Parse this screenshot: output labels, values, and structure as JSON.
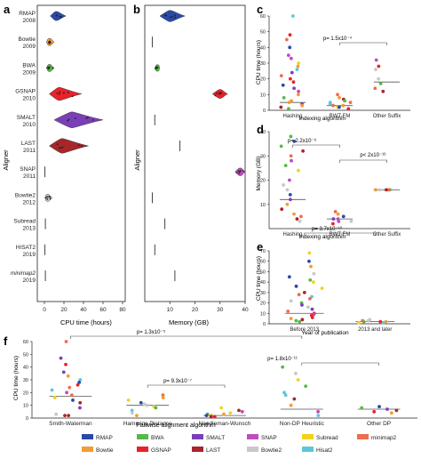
{
  "panels": [
    {
      "letter": "a",
      "xlabel": "CPU time (hours)",
      "ylabel": "Aligner",
      "xticks": [
        0,
        20,
        40,
        60,
        80
      ]
    },
    {
      "letter": "b",
      "xlabel": "Memory (GB)",
      "ylabel": "Aligner",
      "xticks": [
        10,
        20,
        30,
        40
      ]
    },
    {
      "letter": "c",
      "xlabel": "Indexing algorithm",
      "ylabel": "CPU time (hours)",
      "yticks": [
        0,
        10,
        20,
        30,
        40,
        50,
        60
      ],
      "categories": [
        "Hashing",
        "BWT-FM",
        "Other Suffix"
      ],
      "annotation": "p= 1.5x10⁻⁴"
    },
    {
      "letter": "d",
      "xlabel": "Indexing algorithm",
      "ylabel": "Memory (GB)",
      "yticks": [
        10,
        20,
        30,
        40
      ],
      "categories": [
        "Hashing",
        "BWT-FM",
        "Other Suffix"
      ],
      "annotations": [
        "p= 2.2x10⁻⁶",
        "p< 2x10⁻¹⁶"
      ]
    },
    {
      "letter": "e",
      "xlabel": "Year of publication",
      "ylabel": "CPU time (hours)",
      "yticks": [
        0,
        10,
        20,
        30,
        40,
        50,
        60,
        70
      ],
      "categories": [
        "Before 2013",
        "2013 and later"
      ],
      "annotation": "p= 3.7x10⁻¹⁰"
    },
    {
      "letter": "f",
      "xlabel": "Pairwise alignment algorithm",
      "ylabel": "CPU time (hours)",
      "yticks": [
        0,
        10,
        20,
        30,
        40,
        50,
        60
      ],
      "categories": [
        "Smith-Waterman",
        "Hamming Distance",
        "Needleman-Wunsch",
        "Non-DP Heuristic",
        "Other DP"
      ],
      "annotations": [
        "p= 1.3x10⁻⁵",
        "p= 9.3x10⁻⁷",
        "p= 1.8x10⁻¹¹"
      ]
    }
  ],
  "aligners": [
    {
      "name": "RMAP",
      "year": "2008"
    },
    {
      "name": "Bowtie",
      "year": "2009"
    },
    {
      "name": "BWA",
      "year": "2009"
    },
    {
      "name": "GSNAP",
      "year": "2010"
    },
    {
      "name": "SMALT",
      "year": "2010"
    },
    {
      "name": "LAST",
      "year": "2011"
    },
    {
      "name": "SNAP",
      "year": "2011"
    },
    {
      "name": "Bowtie2",
      "year": "2012"
    },
    {
      "name": "Subread",
      "year": "2013"
    },
    {
      "name": "HISAT2",
      "year": "2019"
    },
    {
      "name": "minimap2",
      "year": "2019"
    }
  ],
  "legend": [
    {
      "name": "RMAP",
      "color": "#2a4aa8"
    },
    {
      "name": "BWA",
      "color": "#58b947"
    },
    {
      "name": "SMALT",
      "color": "#7a3fb8"
    },
    {
      "name": "SNAP",
      "color": "#c04bc0"
    },
    {
      "name": "Subread",
      "color": "#f2d21a"
    },
    {
      "name": "minimap2",
      "color": "#ee6e4e"
    },
    {
      "name": "Bowtie",
      "color": "#f39c33"
    },
    {
      "name": "GSNAP",
      "color": "#e8222a"
    },
    {
      "name": "LAST",
      "color": "#a8262a"
    },
    {
      "name": "Bowtie2",
      "color": "#c8c8c8"
    },
    {
      "name": "Hisat2",
      "color": "#5bc8d8"
    }
  ],
  "chart_data": [
    {
      "panel": "a",
      "type": "violin",
      "xlim": [
        0,
        80
      ],
      "categories": [
        "RMAP",
        "Bowtie",
        "BWA",
        "GSNAP",
        "SMALT",
        "LAST",
        "SNAP",
        "Bowtie2",
        "Subread",
        "HISAT2",
        "minimap2"
      ],
      "medians": [
        12,
        5,
        5,
        15,
        28,
        18,
        0.5,
        3,
        1,
        0.5,
        1
      ],
      "min": [
        6,
        2,
        2,
        5,
        10,
        5,
        0.1,
        0.5,
        0.2,
        0.1,
        0.2
      ],
      "max": [
        22,
        10,
        10,
        38,
        60,
        45,
        1.5,
        8,
        2.5,
        1.5,
        2.5
      ]
    },
    {
      "panel": "b",
      "type": "violin",
      "xlim": [
        0,
        40
      ],
      "categories": [
        "RMAP",
        "Bowtie",
        "BWA",
        "GSNAP",
        "SMALT",
        "LAST",
        "SNAP",
        "Bowtie2",
        "Subread",
        "HISAT2",
        "minimap2"
      ],
      "medians": [
        10,
        3,
        5,
        30,
        4,
        14,
        38,
        3,
        8,
        4,
        12
      ],
      "min": [
        6,
        3,
        4,
        27,
        4,
        14,
        36,
        3,
        8,
        4,
        12
      ],
      "max": [
        16,
        3,
        6,
        33,
        4,
        14,
        40,
        3,
        8,
        4,
        12
      ]
    },
    {
      "panel": "c",
      "type": "scatter",
      "ylim": [
        0,
        60
      ],
      "categories": [
        "Hashing",
        "BWT-FM",
        "Other Suffix"
      ],
      "medians": [
        5,
        3,
        18
      ],
      "points": [
        [
          1,
          60
        ],
        [
          1,
          48
        ],
        [
          1,
          45
        ],
        [
          1,
          40
        ],
        [
          1,
          35
        ],
        [
          1,
          33
        ],
        [
          1,
          30
        ],
        [
          1,
          28
        ],
        [
          1,
          26
        ],
        [
          1,
          24
        ],
        [
          1,
          22
        ],
        [
          1,
          20
        ],
        [
          1,
          18
        ],
        [
          1,
          16
        ],
        [
          1,
          14
        ],
        [
          1,
          12
        ],
        [
          1,
          10
        ],
        [
          1,
          8
        ],
        [
          1,
          6
        ],
        [
          1,
          5
        ],
        [
          1,
          4
        ],
        [
          1,
          3
        ],
        [
          1,
          2
        ],
        [
          1,
          1
        ],
        [
          2,
          10
        ],
        [
          2,
          8
        ],
        [
          2,
          7
        ],
        [
          2,
          6
        ],
        [
          2,
          5
        ],
        [
          2,
          4
        ],
        [
          2,
          3
        ],
        [
          2,
          2
        ],
        [
          2,
          1
        ],
        [
          2,
          5
        ],
        [
          2,
          3
        ],
        [
          2,
          2
        ],
        [
          3,
          32
        ],
        [
          3,
          28
        ],
        [
          3,
          26
        ],
        [
          3,
          20
        ],
        [
          3,
          17
        ],
        [
          3,
          14
        ],
        [
          3,
          12
        ]
      ]
    },
    {
      "panel": "d",
      "type": "scatter",
      "ylim": [
        0,
        40
      ],
      "categories": [
        "Hashing",
        "BWT-FM",
        "Other Suffix"
      ],
      "medians": [
        12,
        4,
        16
      ],
      "points": [
        [
          1,
          38
        ],
        [
          1,
          36
        ],
        [
          1,
          34
        ],
        [
          1,
          32
        ],
        [
          1,
          30
        ],
        [
          1,
          28
        ],
        [
          1,
          26
        ],
        [
          1,
          24
        ],
        [
          1,
          20
        ],
        [
          1,
          18
        ],
        [
          1,
          16
        ],
        [
          1,
          14
        ],
        [
          1,
          12
        ],
        [
          1,
          10
        ],
        [
          1,
          8
        ],
        [
          1,
          6
        ],
        [
          1,
          5
        ],
        [
          1,
          4
        ],
        [
          1,
          3
        ],
        [
          2,
          7
        ],
        [
          2,
          6
        ],
        [
          2,
          5
        ],
        [
          2,
          4
        ],
        [
          2,
          4
        ],
        [
          2,
          3
        ],
        [
          2,
          3
        ],
        [
          2,
          2
        ],
        [
          3,
          16
        ],
        [
          3,
          16
        ],
        [
          3,
          16
        ],
        [
          3,
          16
        ],
        [
          3,
          16
        ],
        [
          3,
          16
        ]
      ]
    },
    {
      "panel": "e",
      "type": "scatter",
      "ylim": [
        0,
        70
      ],
      "categories": [
        "Before 2013",
        "2013 and later"
      ],
      "medians": [
        10,
        2
      ],
      "points": [
        [
          1,
          68
        ],
        [
          1,
          60
        ],
        [
          1,
          55
        ],
        [
          1,
          48
        ],
        [
          1,
          45
        ],
        [
          1,
          42
        ],
        [
          1,
          40
        ],
        [
          1,
          36
        ],
        [
          1,
          34
        ],
        [
          1,
          30
        ],
        [
          1,
          28
        ],
        [
          1,
          26
        ],
        [
          1,
          24
        ],
        [
          1,
          22
        ],
        [
          1,
          20
        ],
        [
          1,
          18
        ],
        [
          1,
          16
        ],
        [
          1,
          14
        ],
        [
          1,
          12
        ],
        [
          1,
          10
        ],
        [
          1,
          9
        ],
        [
          1,
          8
        ],
        [
          1,
          6
        ],
        [
          1,
          5
        ],
        [
          1,
          4
        ],
        [
          1,
          3
        ],
        [
          1,
          2
        ],
        [
          2,
          4
        ],
        [
          2,
          3
        ],
        [
          2,
          2
        ],
        [
          2,
          2
        ],
        [
          2,
          1
        ],
        [
          2,
          1
        ],
        [
          2,
          3
        ],
        [
          2,
          2
        ]
      ]
    },
    {
      "panel": "f",
      "type": "scatter",
      "ylim": [
        0,
        60
      ],
      "categories": [
        "Smith-Waterman",
        "Hamming Distance",
        "Needleman-Wunsch",
        "Non-DP Heuristic",
        "Other DP"
      ],
      "medians": [
        17,
        10,
        2,
        7,
        7
      ],
      "points": [
        [
          1,
          60
        ],
        [
          1,
          47
        ],
        [
          1,
          42
        ],
        [
          1,
          36
        ],
        [
          1,
          33
        ],
        [
          1,
          30
        ],
        [
          1,
          28
        ],
        [
          1,
          26
        ],
        [
          1,
          24
        ],
        [
          1,
          22
        ],
        [
          1,
          20
        ],
        [
          1,
          18
        ],
        [
          1,
          16
        ],
        [
          1,
          14
        ],
        [
          1,
          12
        ],
        [
          1,
          8
        ],
        [
          1,
          3
        ],
        [
          1,
          2
        ],
        [
          1,
          2
        ],
        [
          2,
          18
        ],
        [
          2,
          16
        ],
        [
          2,
          14
        ],
        [
          2,
          12
        ],
        [
          2,
          11
        ],
        [
          2,
          10
        ],
        [
          2,
          9
        ],
        [
          2,
          8
        ],
        [
          2,
          6
        ],
        [
          2,
          4
        ],
        [
          2,
          2
        ],
        [
          3,
          8
        ],
        [
          3,
          6
        ],
        [
          3,
          5
        ],
        [
          3,
          4
        ],
        [
          3,
          3
        ],
        [
          3,
          3
        ],
        [
          3,
          2
        ],
        [
          3,
          2
        ],
        [
          3,
          1
        ],
        [
          3,
          1
        ],
        [
          4,
          40
        ],
        [
          4,
          35
        ],
        [
          4,
          30
        ],
        [
          4,
          25
        ],
        [
          4,
          20
        ],
        [
          4,
          18
        ],
        [
          4,
          15
        ],
        [
          4,
          10
        ],
        [
          4,
          5
        ],
        [
          4,
          2
        ],
        [
          5,
          9
        ],
        [
          5,
          8
        ],
        [
          5,
          7
        ],
        [
          5,
          6
        ],
        [
          5,
          5
        ],
        [
          5,
          4
        ]
      ]
    }
  ]
}
